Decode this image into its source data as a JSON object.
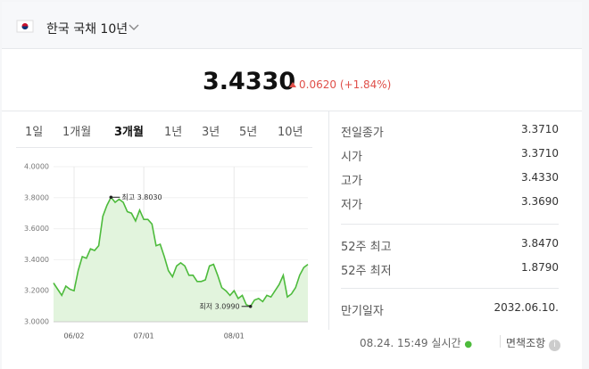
{
  "header": {
    "title": "한국 국채 10년"
  },
  "quote": {
    "price": "3.4330",
    "change": "0.0620",
    "change_pct": "(+1.84%)"
  },
  "tabs": [
    "1일",
    "1개월",
    "3개월",
    "1년",
    "3년",
    "5년",
    "10년"
  ],
  "selected_tab": 2,
  "chart_data": {
    "type": "line",
    "color": "#4dbb3c",
    "area_color": "#e2f4dd",
    "categories": [
      null,
      null,
      null,
      null,
      null,
      "06/02",
      null,
      null,
      null,
      null,
      null,
      null,
      null,
      null,
      null,
      null,
      null,
      null,
      null,
      null,
      null,
      null,
      "07/01",
      null,
      null,
      null,
      null,
      null,
      null,
      null,
      null,
      null,
      null,
      null,
      null,
      null,
      null,
      null,
      null,
      null,
      null,
      null,
      null,
      null,
      "08/01",
      null,
      null,
      null,
      null,
      null,
      null,
      null,
      null,
      null,
      null,
      null,
      null,
      null,
      null,
      null,
      null,
      null,
      null
    ],
    "values": [
      3.25,
      3.21,
      3.17,
      3.23,
      3.21,
      3.2,
      3.33,
      3.42,
      3.41,
      3.47,
      3.46,
      3.49,
      3.68,
      3.75,
      3.803,
      3.77,
      3.79,
      3.77,
      3.71,
      3.7,
      3.65,
      3.72,
      3.66,
      3.66,
      3.63,
      3.49,
      3.5,
      3.42,
      3.33,
      3.29,
      3.36,
      3.38,
      3.36,
      3.3,
      3.3,
      3.26,
      3.26,
      3.27,
      3.36,
      3.37,
      3.3,
      3.22,
      3.2,
      3.17,
      3.2,
      3.15,
      3.17,
      3.11,
      3.099,
      3.14,
      3.15,
      3.13,
      3.17,
      3.16,
      3.2,
      3.24,
      3.3,
      3.16,
      3.18,
      3.22,
      3.3,
      3.35,
      3.37
    ],
    "ylim": [
      3,
      4
    ],
    "yticks": [
      {
        "value": 3,
        "label": "3.0000"
      },
      {
        "value": 3.2,
        "label": "3.2000"
      },
      {
        "value": 3.4,
        "label": "3.4000"
      },
      {
        "value": 3.6,
        "label": "3.6000"
      },
      {
        "value": 3.8,
        "label": "3.8000"
      },
      {
        "value": 4,
        "label": "4.0000"
      }
    ],
    "annotations": [
      {
        "index": 14,
        "text": "최고 3.8030"
      },
      {
        "index": 48,
        "text": "최저 3.0990"
      }
    ]
  },
  "stats": [
    [
      "전일종가",
      "3.3710"
    ],
    [
      "시가",
      "3.3710"
    ],
    [
      "고가",
      "3.4330"
    ],
    [
      "저가",
      "3.3690"
    ],
    [
      "52주 최고",
      "3.8470"
    ],
    [
      "52주 최저",
      "1.8790"
    ],
    [
      "만기일자",
      "2032.06.10."
    ]
  ],
  "footer": {
    "time": "08.24. 15:49",
    "realtime": "실시간",
    "disclaimer": "면책조항"
  }
}
